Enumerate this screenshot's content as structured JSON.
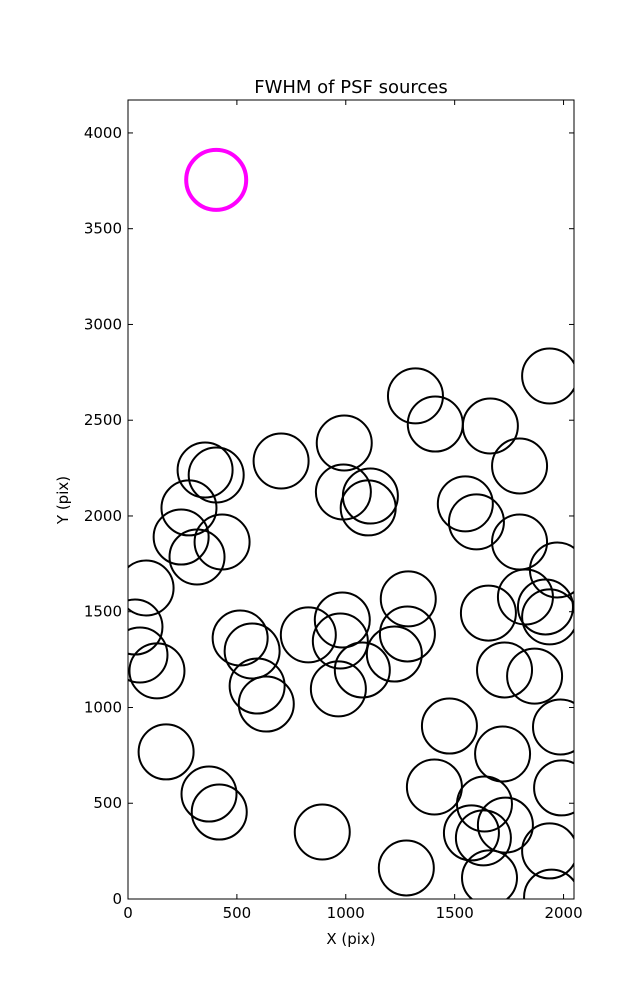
{
  "chart_data": {
    "type": "scatter",
    "title": "FWHM of PSF sources",
    "x_label": "X (pix)",
    "y_label": "Y (pix)",
    "xlim": [
      0,
      2048
    ],
    "ylim": [
      0,
      4172
    ],
    "xticks": [
      0,
      500,
      1000,
      1500,
      2000
    ],
    "yticks": [
      0,
      500,
      1000,
      1500,
      2000,
      2500,
      3000,
      3500,
      4000
    ],
    "series": [
      {
        "color": "#000000",
        "linewidth": 2,
        "x": [
          1320,
          1411,
          1664,
          1936,
          993,
          703,
          354,
          405,
          989,
          1798,
          1113,
          1103,
          1549,
          1600,
          280,
          244,
          432,
          317,
          1798,
          1972,
          83,
          32,
          55,
          133,
          1287,
          1825,
          1917,
          1936,
          1655,
          984,
          828,
          1283,
          515,
          975,
          570,
          1223,
          1076,
          1729,
          1867,
          593,
          966,
          635,
          1476,
          1986,
          175,
          1720,
          1407,
          1991,
          372,
          1637,
          419,
          1733,
          892,
          1577,
          1632,
          1936,
          1278,
          1660,
          1945
        ],
        "y": [
          2627,
          2480,
          2470,
          2731,
          2381,
          2287,
          2240,
          2214,
          2125,
          2261,
          2104,
          2042,
          2063,
          1969,
          2042,
          1890,
          1864,
          1786,
          1864,
          1718,
          1624,
          1420,
          1274,
          1191,
          1567,
          1577,
          1525,
          1473,
          1493,
          1457,
          1379,
          1384,
          1363,
          1347,
          1295,
          1279,
          1196,
          1196,
          1164,
          1112,
          1097,
          1018,
          903,
          898,
          768,
          757,
          585,
          580,
          548,
          496,
          454,
          386,
          350,
          345,
          319,
          251,
          162,
          110,
          10
        ]
      },
      {
        "color": "#ff00ff",
        "linewidth": 4,
        "x": [
          405
        ],
        "y": [
          3755
        ]
      }
    ]
  }
}
